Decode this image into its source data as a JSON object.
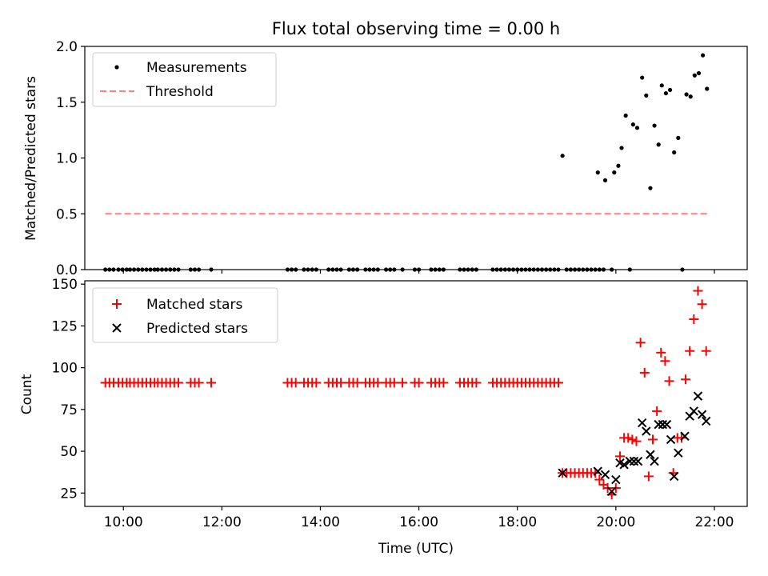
{
  "figure": {
    "title": "Flux total observing time = 0.00 h",
    "xlabel": "Time (UTC)"
  },
  "chart_data": [
    {
      "type": "scatter",
      "ylabel": "Matched/Predicted stars",
      "xlim": [
        "09:13",
        "22:40"
      ],
      "ylim": [
        0,
        2.0
      ],
      "yticks": [
        "0.0",
        "0.5",
        "1.0",
        "1.5",
        "2.0"
      ],
      "legend_position": "top-left",
      "series": [
        {
          "name": "Measurements",
          "marker": "dot",
          "color": "#000000",
          "points": [
            [
              "09:38",
              0
            ],
            [
              "09:43",
              0
            ],
            [
              "09:48",
              0
            ],
            [
              "09:54",
              0
            ],
            [
              "09:59",
              0
            ],
            [
              "10:04",
              0
            ],
            [
              "10:08",
              0
            ],
            [
              "10:13",
              0
            ],
            [
              "10:18",
              0
            ],
            [
              "10:23",
              0
            ],
            [
              "10:28",
              0
            ],
            [
              "10:33",
              0
            ],
            [
              "10:38",
              0
            ],
            [
              "10:42",
              0
            ],
            [
              "10:47",
              0
            ],
            [
              "10:52",
              0
            ],
            [
              "10:57",
              0
            ],
            [
              "11:02",
              0
            ],
            [
              "11:07",
              0
            ],
            [
              "11:22",
              0
            ],
            [
              "11:27",
              0
            ],
            [
              "11:32",
              0
            ],
            [
              "11:47",
              0
            ],
            [
              "13:20",
              0
            ],
            [
              "13:25",
              0
            ],
            [
              "13:30",
              0
            ],
            [
              "13:40",
              0
            ],
            [
              "13:45",
              0
            ],
            [
              "13:50",
              0
            ],
            [
              "13:55",
              0
            ],
            [
              "14:10",
              0
            ],
            [
              "14:15",
              0
            ],
            [
              "14:20",
              0
            ],
            [
              "14:25",
              0
            ],
            [
              "14:35",
              0
            ],
            [
              "14:40",
              0
            ],
            [
              "14:45",
              0
            ],
            [
              "14:55",
              0
            ],
            [
              "15:00",
              0
            ],
            [
              "15:05",
              0
            ],
            [
              "15:10",
              0
            ],
            [
              "15:20",
              0
            ],
            [
              "15:25",
              0
            ],
            [
              "15:30",
              0
            ],
            [
              "15:40",
              0
            ],
            [
              "15:55",
              0
            ],
            [
              "16:00",
              0
            ],
            [
              "16:15",
              0
            ],
            [
              "16:20",
              0
            ],
            [
              "16:25",
              0
            ],
            [
              "16:30",
              0
            ],
            [
              "16:50",
              0
            ],
            [
              "16:55",
              0
            ],
            [
              "17:00",
              0
            ],
            [
              "17:05",
              0
            ],
            [
              "17:10",
              0
            ],
            [
              "17:30",
              0
            ],
            [
              "17:35",
              0
            ],
            [
              "17:40",
              0
            ],
            [
              "17:45",
              0
            ],
            [
              "17:50",
              0
            ],
            [
              "17:55",
              0
            ],
            [
              "18:00",
              0
            ],
            [
              "18:05",
              0
            ],
            [
              "18:10",
              0
            ],
            [
              "18:15",
              0
            ],
            [
              "18:20",
              0
            ],
            [
              "18:25",
              0
            ],
            [
              "18:30",
              0
            ],
            [
              "18:35",
              0
            ],
            [
              "18:40",
              0
            ],
            [
              "18:45",
              0
            ],
            [
              "18:50",
              0
            ],
            [
              "18:55",
              1.02
            ],
            [
              "19:00",
              0
            ],
            [
              "19:05",
              0
            ],
            [
              "19:10",
              0
            ],
            [
              "19:15",
              0
            ],
            [
              "19:20",
              0
            ],
            [
              "19:25",
              0
            ],
            [
              "19:30",
              0
            ],
            [
              "19:35",
              0
            ],
            [
              "19:40",
              0
            ],
            [
              "19:38",
              0.87
            ],
            [
              "19:45",
              0
            ],
            [
              "19:47",
              0.8
            ],
            [
              "19:55",
              0
            ],
            [
              "19:58",
              0.87
            ],
            [
              "20:03",
              0.93
            ],
            [
              "20:07",
              1.09
            ],
            [
              "20:12",
              1.38
            ],
            [
              "20:17",
              0
            ],
            [
              "20:21",
              1.3
            ],
            [
              "20:26",
              1.27
            ],
            [
              "20:32",
              1.72
            ],
            [
              "20:37",
              1.56
            ],
            [
              "20:42",
              0.73
            ],
            [
              "20:47",
              1.29
            ],
            [
              "20:52",
              1.12
            ],
            [
              "20:56",
              1.65
            ],
            [
              "21:01",
              1.58
            ],
            [
              "21:06",
              1.61
            ],
            [
              "21:11",
              1.05
            ],
            [
              "21:16",
              1.18
            ],
            [
              "21:21",
              0
            ],
            [
              "21:26",
              1.57
            ],
            [
              "21:31",
              1.55
            ],
            [
              "21:36",
              1.74
            ],
            [
              "21:41",
              1.76
            ],
            [
              "21:46",
              1.92
            ],
            [
              "21:51",
              1.62
            ]
          ]
        },
        {
          "name": "Threshold",
          "marker": "dashed-line",
          "color": "#ff7f7f",
          "points": [
            [
              "09:38",
              0.5
            ],
            [
              "21:51",
              0.5
            ]
          ]
        }
      ]
    },
    {
      "type": "scatter",
      "ylabel": "Count",
      "xlim": [
        "09:13",
        "22:40"
      ],
      "ylim": [
        17,
        152
      ],
      "yticks": [
        "25",
        "50",
        "75",
        "100",
        "125",
        "150"
      ],
      "xticks": [
        "10:00",
        "12:00",
        "14:00",
        "16:00",
        "18:00",
        "20:00",
        "22:00"
      ],
      "legend_position": "top-left",
      "series": [
        {
          "name": "Matched stars",
          "marker": "plus",
          "color": "#ff0000",
          "points": [
            [
              "09:38",
              91
            ],
            [
              "09:43",
              91
            ],
            [
              "09:48",
              91
            ],
            [
              "09:54",
              91
            ],
            [
              "09:59",
              91
            ],
            [
              "10:04",
              91
            ],
            [
              "10:08",
              91
            ],
            [
              "10:13",
              91
            ],
            [
              "10:18",
              91
            ],
            [
              "10:23",
              91
            ],
            [
              "10:28",
              91
            ],
            [
              "10:33",
              91
            ],
            [
              "10:38",
              91
            ],
            [
              "10:42",
              91
            ],
            [
              "10:47",
              91
            ],
            [
              "10:52",
              91
            ],
            [
              "10:57",
              91
            ],
            [
              "11:02",
              91
            ],
            [
              "11:07",
              91
            ],
            [
              "11:22",
              91
            ],
            [
              "11:27",
              91
            ],
            [
              "11:32",
              91
            ],
            [
              "11:47",
              91
            ],
            [
              "13:20",
              91
            ],
            [
              "13:25",
              91
            ],
            [
              "13:30",
              91
            ],
            [
              "13:40",
              91
            ],
            [
              "13:45",
              91
            ],
            [
              "13:50",
              91
            ],
            [
              "13:55",
              91
            ],
            [
              "14:10",
              91
            ],
            [
              "14:15",
              91
            ],
            [
              "14:20",
              91
            ],
            [
              "14:25",
              91
            ],
            [
              "14:35",
              91
            ],
            [
              "14:40",
              91
            ],
            [
              "14:45",
              91
            ],
            [
              "14:55",
              91
            ],
            [
              "15:00",
              91
            ],
            [
              "15:05",
              91
            ],
            [
              "15:10",
              91
            ],
            [
              "15:20",
              91
            ],
            [
              "15:25",
              91
            ],
            [
              "15:30",
              91
            ],
            [
              "15:40",
              91
            ],
            [
              "15:55",
              91
            ],
            [
              "16:00",
              91
            ],
            [
              "16:15",
              91
            ],
            [
              "16:20",
              91
            ],
            [
              "16:25",
              91
            ],
            [
              "16:30",
              91
            ],
            [
              "16:50",
              91
            ],
            [
              "16:55",
              91
            ],
            [
              "17:00",
              91
            ],
            [
              "17:05",
              91
            ],
            [
              "17:10",
              91
            ],
            [
              "17:30",
              91
            ],
            [
              "17:35",
              91
            ],
            [
              "17:40",
              91
            ],
            [
              "17:45",
              91
            ],
            [
              "17:50",
              91
            ],
            [
              "17:55",
              91
            ],
            [
              "18:00",
              91
            ],
            [
              "18:05",
              91
            ],
            [
              "18:10",
              91
            ],
            [
              "18:15",
              91
            ],
            [
              "18:20",
              91
            ],
            [
              "18:25",
              91
            ],
            [
              "18:30",
              91
            ],
            [
              "18:35",
              91
            ],
            [
              "18:40",
              91
            ],
            [
              "18:45",
              91
            ],
            [
              "18:50",
              91
            ],
            [
              "18:55",
              37
            ],
            [
              "19:00",
              37
            ],
            [
              "19:05",
              37
            ],
            [
              "19:10",
              37
            ],
            [
              "19:15",
              37
            ],
            [
              "19:20",
              37
            ],
            [
              "19:25",
              37
            ],
            [
              "19:30",
              37
            ],
            [
              "19:35",
              37
            ],
            [
              "19:40",
              33
            ],
            [
              "19:45",
              30
            ],
            [
              "19:50",
              28
            ],
            [
              "19:55",
              24
            ],
            [
              "20:00",
              28
            ],
            [
              "20:05",
              47
            ],
            [
              "20:10",
              58
            ],
            [
              "20:15",
              58
            ],
            [
              "20:20",
              57
            ],
            [
              "20:25",
              56
            ],
            [
              "20:30",
              115
            ],
            [
              "20:35",
              97
            ],
            [
              "20:40",
              35
            ],
            [
              "20:45",
              57
            ],
            [
              "20:50",
              74
            ],
            [
              "20:55",
              109
            ],
            [
              "21:00",
              104
            ],
            [
              "21:05",
              92
            ],
            [
              "21:10",
              37
            ],
            [
              "21:15",
              58
            ],
            [
              "21:20",
              58
            ],
            [
              "21:25",
              93
            ],
            [
              "21:30",
              110
            ],
            [
              "21:35",
              129
            ],
            [
              "21:40",
              146
            ],
            [
              "21:45",
              138
            ],
            [
              "21:50",
              110
            ]
          ]
        },
        {
          "name": "Predicted stars",
          "marker": "x",
          "color": "#000000",
          "points": [
            [
              "18:55",
              37
            ],
            [
              "19:38",
              38
            ],
            [
              "19:47",
              36
            ],
            [
              "19:55",
              26
            ],
            [
              "20:00",
              33
            ],
            [
              "20:05",
              43
            ],
            [
              "20:10",
              42
            ],
            [
              "20:17",
              44
            ],
            [
              "20:22",
              44
            ],
            [
              "20:27",
              44
            ],
            [
              "20:32",
              67
            ],
            [
              "20:37",
              62
            ],
            [
              "20:42",
              48
            ],
            [
              "20:47",
              44
            ],
            [
              "20:52",
              66
            ],
            [
              "20:57",
              66
            ],
            [
              "21:02",
              66
            ],
            [
              "21:07",
              57
            ],
            [
              "21:11",
              35
            ],
            [
              "21:16",
              49
            ],
            [
              "21:24",
              59
            ],
            [
              "21:30",
              71
            ],
            [
              "21:35",
              74
            ],
            [
              "21:40",
              83
            ],
            [
              "21:45",
              72
            ],
            [
              "21:50",
              68
            ]
          ]
        }
      ]
    }
  ]
}
